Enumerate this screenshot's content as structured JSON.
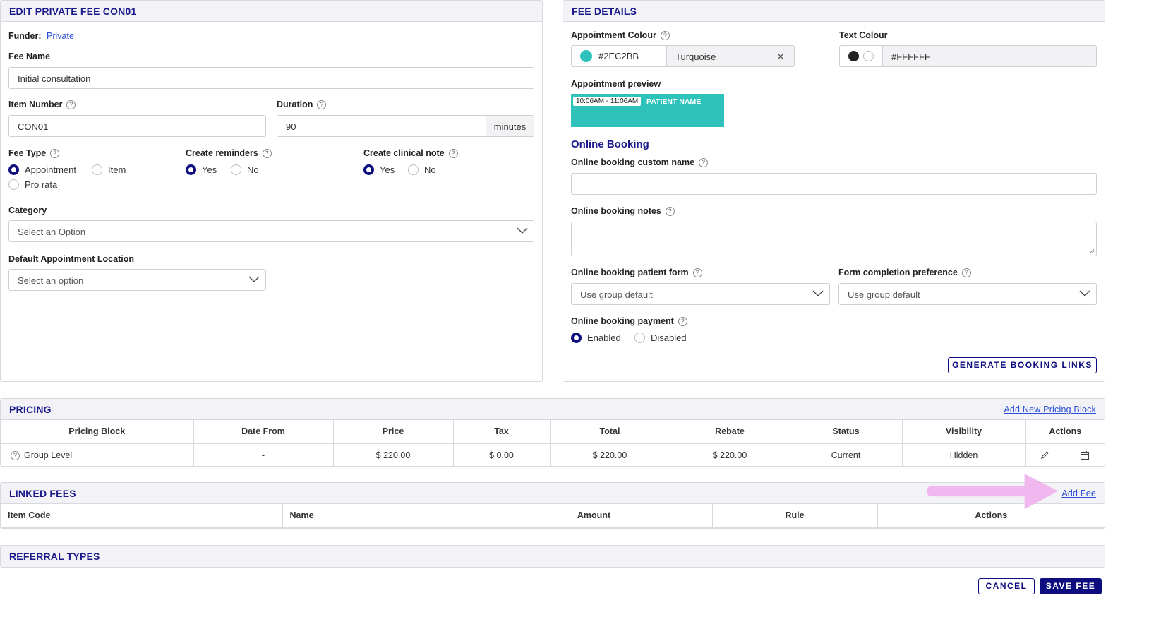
{
  "edit_panel": {
    "title": "EDIT PRIVATE FEE CON01",
    "funder_label": "Funder:",
    "funder_value": "Private",
    "fee_name_label": "Fee Name",
    "fee_name_value": "Initial consultation",
    "item_number_label": "Item Number",
    "item_number_value": "CON01",
    "duration_label": "Duration",
    "duration_value": "90",
    "duration_unit": "minutes",
    "fee_type_label": "Fee Type",
    "fee_type_options": [
      "Appointment",
      "Item",
      "Pro rata"
    ],
    "fee_type_selected": "Appointment",
    "reminders_label": "Create reminders",
    "clinical_note_label": "Create clinical note",
    "yes": "Yes",
    "no": "No",
    "category_label": "Category",
    "category_placeholder": "Select an Option",
    "location_label": "Default Appointment Location",
    "location_placeholder": "Select an option"
  },
  "fee_details": {
    "title": "FEE DETAILS",
    "appt_colour_label": "Appointment Colour",
    "appt_colour_hex": "#2EC2BB",
    "appt_colour_name": "Turquoise",
    "text_colour_label": "Text Colour",
    "text_colour_hex": "#FFFFFF",
    "preview_label": "Appointment preview",
    "preview_time": "10:06AM - 11:06AM",
    "preview_name": "PATIENT NAME",
    "online_booking_heading": "Online Booking",
    "custom_name_label": "Online booking custom name",
    "notes_label": "Online booking notes",
    "patient_form_label": "Online booking patient form",
    "patient_form_value": "Use group default",
    "form_pref_label": "Form completion preference",
    "form_pref_value": "Use group default",
    "payment_label": "Online booking payment",
    "enabled": "Enabled",
    "disabled": "Disabled",
    "generate_button": "GENERATE BOOKING LINKS"
  },
  "pricing": {
    "title": "PRICING",
    "add_link": "Add New Pricing Block",
    "columns": [
      "Pricing Block",
      "Date From",
      "Price",
      "Tax",
      "Total",
      "Rebate",
      "Status",
      "Visibility",
      "Actions"
    ],
    "row": {
      "block": "Group Level",
      "date_from": "-",
      "price": "$ 220.00",
      "tax": "$ 0.00",
      "total": "$ 220.00",
      "rebate": "$ 220.00",
      "status": "Current",
      "visibility": "Hidden"
    }
  },
  "linked_fees": {
    "title": "LINKED FEES",
    "add_link": "Add Fee",
    "columns": [
      "Item Code",
      "Name",
      "Amount",
      "Rule",
      "Actions"
    ]
  },
  "referral_types": {
    "title": "REFERRAL TYPES"
  },
  "footer": {
    "cancel": "CANCEL",
    "save": "SAVE FEE"
  },
  "colors": {
    "accent": "#0d0d80",
    "turquoise": "#2EC2BB",
    "arrow": "#f0b8ee"
  }
}
